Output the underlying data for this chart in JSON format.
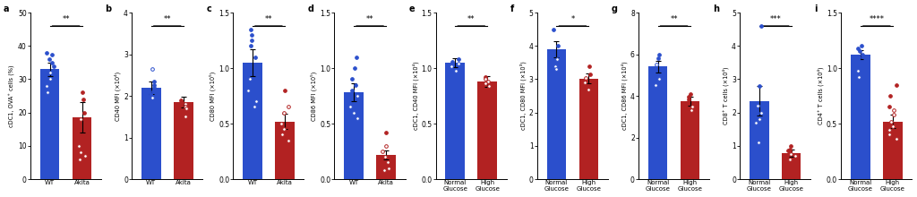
{
  "panels": [
    {
      "label": "a",
      "ylabel": "cDC1, OVA⁺ cells (%)",
      "xtick_labels": [
        "WT",
        "Akita"
      ],
      "bar_values": [
        33.0,
        18.5
      ],
      "bar_colors": [
        "#2b4fcc",
        "#b22222"
      ],
      "error_bars": [
        2.0,
        4.5
      ],
      "ylim": [
        0,
        50
      ],
      "yticks": [
        0,
        10,
        20,
        30,
        40,
        50
      ],
      "sig": "**",
      "dots_blue": [
        38,
        37.5,
        36,
        35,
        34,
        32,
        30,
        28,
        26
      ],
      "dots_red": [
        26,
        24,
        20,
        18,
        10,
        8,
        7,
        6
      ],
      "dot_style_blue": [
        "filled",
        "filled",
        "filled",
        "filled",
        "filled",
        "open",
        "open",
        "open",
        "open"
      ],
      "dot_style_red": [
        "filled",
        "filled",
        "filled",
        "open",
        "open",
        "open",
        "open",
        "open"
      ]
    },
    {
      "label": "b",
      "ylabel": "CD40 MFI (×10⁴)",
      "xtick_labels": [
        "WT",
        "Akita"
      ],
      "bar_values": [
        2.2,
        1.85
      ],
      "bar_colors": [
        "#2b4fcc",
        "#b22222"
      ],
      "error_bars": [
        0.15,
        0.12
      ],
      "ylim": [
        0,
        4
      ],
      "yticks": [
        0,
        1,
        2,
        3,
        4
      ],
      "sig": "**",
      "dots_blue": [
        2.65,
        2.35,
        2.25,
        2.2,
        2.15,
        2.1,
        2.05,
        2.0,
        1.95
      ],
      "dots_red": [
        1.9,
        1.85,
        1.8,
        1.75,
        1.7,
        1.5
      ],
      "dot_style_blue": [
        "open",
        "filled",
        "filled",
        "filled",
        "filled",
        "filled",
        "filled",
        "filled",
        "open"
      ],
      "dot_style_red": [
        "filled",
        "filled",
        "open",
        "open",
        "open",
        "open"
      ]
    },
    {
      "label": "c",
      "ylabel": "CD80 MFI (×10⁵)",
      "xtick_labels": [
        "WT",
        "Akita"
      ],
      "bar_values": [
        1.05,
        0.52
      ],
      "bar_colors": [
        "#2b4fcc",
        "#b22222"
      ],
      "error_bars": [
        0.12,
        0.07
      ],
      "ylim": [
        0,
        1.5
      ],
      "yticks": [
        0,
        0.5,
        1.0,
        1.5
      ],
      "sig": "**",
      "dots_blue": [
        1.35,
        1.3,
        1.25,
        1.2,
        1.1,
        0.9,
        0.8,
        0.7,
        0.65
      ],
      "dots_red": [
        0.8,
        0.65,
        0.6,
        0.5,
        0.45,
        0.4,
        0.35
      ],
      "dot_style_blue": [
        "filled",
        "filled",
        "filled",
        "filled",
        "filled",
        "open",
        "open",
        "open",
        "open"
      ],
      "dot_style_red": [
        "filled",
        "open",
        "open",
        "open",
        "open",
        "open",
        "open"
      ]
    },
    {
      "label": "d",
      "ylabel": "CD86 MFI (×10⁵)",
      "xtick_labels": [
        "WT",
        "Akita"
      ],
      "bar_values": [
        0.78,
        0.22
      ],
      "bar_colors": [
        "#2b4fcc",
        "#b22222"
      ],
      "error_bars": [
        0.08,
        0.04
      ],
      "ylim": [
        0,
        1.5
      ],
      "yticks": [
        0,
        0.5,
        1.0,
        1.5
      ],
      "sig": "**",
      "dots_blue": [
        1.1,
        1.0,
        0.9,
        0.85,
        0.8,
        0.75,
        0.65,
        0.6,
        0.55
      ],
      "dots_red": [
        0.42,
        0.3,
        0.25,
        0.2,
        0.15,
        0.1,
        0.08
      ],
      "dot_style_blue": [
        "filled",
        "filled",
        "filled",
        "filled",
        "filled",
        "open",
        "open",
        "open",
        "open"
      ],
      "dot_style_red": [
        "filled",
        "open",
        "open",
        "open",
        "open",
        "open",
        "open"
      ]
    },
    {
      "label": "e",
      "ylabel": "cDC1, CD40 MFI (×10⁴)",
      "xtick_labels": [
        "Normal\nGlucose",
        "High\nGlucose"
      ],
      "bar_values": [
        1.05,
        0.88
      ],
      "bar_colors": [
        "#2b4fcc",
        "#b22222"
      ],
      "error_bars": [
        0.04,
        0.05
      ],
      "ylim": [
        0,
        1.5
      ],
      "yticks": [
        0,
        0.5,
        1.0,
        1.5
      ],
      "sig": "**",
      "dots_blue": [
        1.08,
        1.06,
        1.04,
        1.02,
        0.98
      ],
      "dots_red": [
        0.92,
        0.9,
        0.88,
        0.86,
        0.84
      ],
      "dot_style_blue": [
        "filled",
        "filled",
        "open",
        "open",
        "open"
      ],
      "dot_style_red": [
        "filled",
        "open",
        "open",
        "open",
        "open"
      ]
    },
    {
      "label": "f",
      "ylabel": "cDC1, CD80 MFI (×10³)",
      "xtick_labels": [
        "Normal\nGlucose",
        "High\nGlucose"
      ],
      "bar_values": [
        3.9,
        3.02
      ],
      "bar_colors": [
        "#2b4fcc",
        "#b22222"
      ],
      "error_bars": [
        0.25,
        0.15
      ],
      "ylim": [
        0,
        5
      ],
      "yticks": [
        0,
        1,
        2,
        3,
        4,
        5
      ],
      "sig": "*",
      "dots_blue": [
        4.5,
        4.0,
        3.6,
        3.4,
        3.3
      ],
      "dots_red": [
        3.4,
        3.15,
        3.05,
        2.9,
        2.7
      ],
      "dot_style_blue": [
        "filled",
        "filled",
        "open",
        "open",
        "open"
      ],
      "dot_style_red": [
        "filled",
        "filled",
        "open",
        "open",
        "open"
      ]
    },
    {
      "label": "g",
      "ylabel": "cDC1, CD86 MFI (×10⁴)",
      "xtick_labels": [
        "Normal\nGlucose",
        "High\nGlucose"
      ],
      "bar_values": [
        5.4,
        3.75
      ],
      "bar_colors": [
        "#2b4fcc",
        "#b22222"
      ],
      "error_bars": [
        0.3,
        0.2
      ],
      "ylim": [
        0,
        8
      ],
      "yticks": [
        0,
        2,
        4,
        6,
        8
      ],
      "sig": "**",
      "dots_blue": [
        6.0,
        5.8,
        5.5,
        4.8,
        4.5
      ],
      "dots_red": [
        4.1,
        3.95,
        3.85,
        3.5,
        3.3
      ],
      "dot_style_blue": [
        "filled",
        "filled",
        "open",
        "open",
        "open"
      ],
      "dot_style_red": [
        "filled",
        "filled",
        "filled",
        "open",
        "open"
      ]
    },
    {
      "label": "h",
      "ylabel": "CD8⁺ T cells (×10⁴)",
      "xtick_labels": [
        "Normal\nGlucose",
        "High\nGlucose"
      ],
      "bar_values": [
        2.35,
        0.78
      ],
      "bar_colors": [
        "#2b4fcc",
        "#b22222"
      ],
      "error_bars": [
        0.45,
        0.1
      ],
      "ylim": [
        0,
        5
      ],
      "yticks": [
        0,
        1,
        2,
        3,
        4,
        5
      ],
      "sig": "***",
      "dots_blue": [
        4.6,
        2.8,
        2.2,
        2.0,
        1.8,
        1.7,
        1.1
      ],
      "dots_red": [
        1.0,
        0.9,
        0.85,
        0.8,
        0.75,
        0.7,
        0.6
      ],
      "dot_style_blue": [
        "filled",
        "filled",
        "open",
        "open",
        "open",
        "open",
        "open"
      ],
      "dot_style_red": [
        "filled",
        "filled",
        "filled",
        "filled",
        "open",
        "open",
        "open"
      ]
    },
    {
      "label": "i",
      "ylabel": "CD4⁺ T cells (×10⁴)",
      "xtick_labels": [
        "Normal\nGlucose",
        "High\nGlucose"
      ],
      "bar_values": [
        1.12,
        0.52
      ],
      "bar_colors": [
        "#2b4fcc",
        "#b22222"
      ],
      "error_bars": [
        0.04,
        0.06
      ],
      "ylim": [
        0,
        1.5
      ],
      "yticks": [
        0,
        0.5,
        1.0,
        1.5
      ],
      "sig": "****",
      "dots_blue": [
        1.2,
        1.18,
        1.15,
        1.12,
        1.1,
        1.08,
        1.05,
        1.02,
        0.98,
        0.92
      ],
      "dots_red": [
        0.85,
        0.75,
        0.65,
        0.62,
        0.58,
        0.52,
        0.48,
        0.44,
        0.4,
        0.36
      ],
      "dot_style_blue": [
        "filled",
        "filled",
        "filled",
        "filled",
        "filled",
        "filled",
        "filled",
        "filled",
        "open",
        "open"
      ],
      "dot_style_red": [
        "filled",
        "filled",
        "filled",
        "open",
        "open",
        "open",
        "open",
        "open",
        "open",
        "open"
      ]
    }
  ],
  "blue_color": "#2b4fcc",
  "red_color": "#b22222",
  "fig_width": 10.24,
  "fig_height": 2.2
}
